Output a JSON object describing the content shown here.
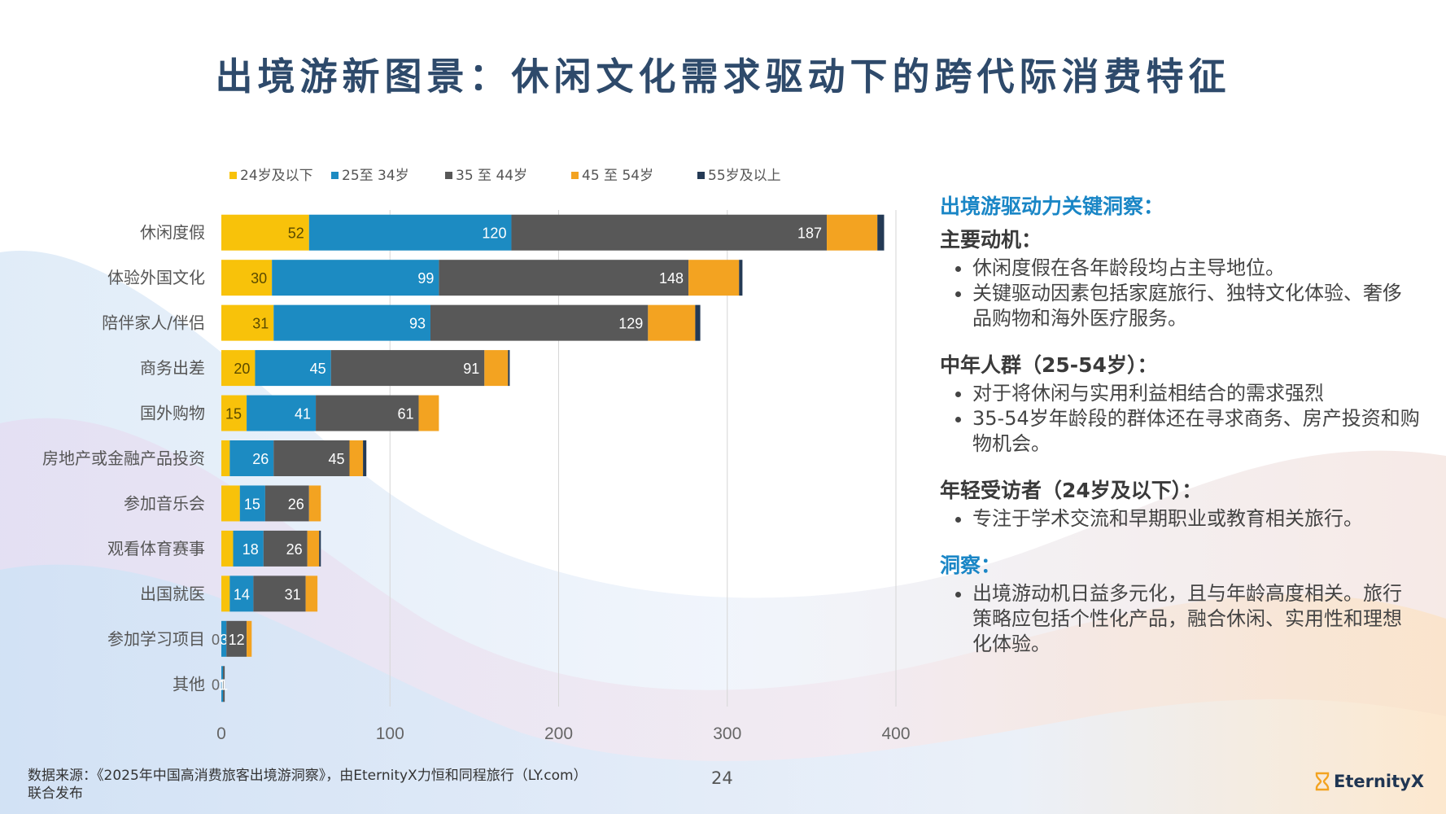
{
  "title": "出境游新图景：休闲文化需求驱动下的跨代际消费特征",
  "colors": {
    "series": [
      "#f8c20a",
      "#1c8bc2",
      "#585858",
      "#f3a321",
      "#243a55"
    ],
    "accent": "#1a86c6",
    "title": "#2e4a6b"
  },
  "chart_data": {
    "type": "bar",
    "orientation": "horizontal",
    "stacked": true,
    "categories": [
      "休闲度假",
      "体验外国文化",
      "陪伴家人/伴侣",
      "商务出差",
      "国外购物",
      "房地产或金融产品投资",
      "参加音乐会",
      "观看体育赛事",
      "出国就医",
      "参加学习项目",
      "其他"
    ],
    "series": [
      {
        "name": "24岁及以下",
        "values": [
          52,
          30,
          31,
          20,
          15,
          5,
          11,
          7,
          5,
          0,
          0
        ]
      },
      {
        "name": "25至 34岁",
        "values": [
          120,
          99,
          93,
          45,
          41,
          26,
          15,
          18,
          14,
          3,
          1
        ]
      },
      {
        "name": "35 至 44岁",
        "values": [
          187,
          148,
          129,
          91,
          61,
          45,
          26,
          26,
          31,
          12,
          1
        ]
      },
      {
        "name": "45 至 54岁",
        "values": [
          30,
          30,
          28,
          14,
          12,
          8,
          7,
          7,
          7,
          3,
          0
        ]
      },
      {
        "name": "55岁及以上",
        "values": [
          4,
          2,
          3,
          1,
          0,
          2,
          0,
          1,
          0,
          0,
          0
        ]
      }
    ],
    "data_labels": [
      [
        "52",
        "120",
        "187",
        null,
        null
      ],
      [
        "30",
        "99",
        "148",
        null,
        null
      ],
      [
        "31",
        "93",
        "129",
        null,
        null
      ],
      [
        "20",
        "45",
        "91",
        null,
        null
      ],
      [
        "15",
        "41",
        "61",
        null,
        null
      ],
      [
        null,
        "26",
        "45",
        null,
        null
      ],
      [
        null,
        "15",
        "26",
        null,
        null
      ],
      [
        null,
        "18",
        "26",
        null,
        null
      ],
      [
        null,
        "14",
        "31",
        null,
        null
      ],
      [
        "0",
        "3",
        "12",
        null,
        null
      ],
      [
        "0",
        "1",
        "1",
        null,
        null
      ]
    ],
    "xlim": [
      0,
      400
    ],
    "xticks": [
      "0",
      "100",
      "200",
      "300",
      "400"
    ],
    "grid": true,
    "legend_position": "top"
  },
  "insights": {
    "heading": "出境游驱动力关键洞察：",
    "sections": [
      {
        "title": "主要动机：",
        "bullets": [
          "休闲度假在各年龄段均占主导地位。",
          "关键驱动因素包括家庭旅行、独特文化体验、奢侈品购物和海外医疗服务。"
        ]
      },
      {
        "title": "中年人群（25-54岁）：",
        "bullets": [
          "对于将休闲与实用利益相结合的需求强烈",
          "35-54岁年龄段的群体还在寻求商务、房产投资和购物机会。"
        ]
      },
      {
        "title": "年轻受访者（24岁及以下）：",
        "bullets": [
          "专注于学术交流和早期职业或教育相关旅行。"
        ]
      },
      {
        "title": "洞察：",
        "bullets": [
          "出境游动机日益多元化，且与年龄高度相关。旅行策略应包括个性化产品，融合休闲、实用性和理想化体验。"
        ]
      }
    ]
  },
  "source": {
    "line1": "数据来源：《2025年中国高消费旅客出境游洞察》，由EternityX力恒和同程旅行（LY.com）",
    "line2": "联合发布"
  },
  "page_number": "24",
  "logo": {
    "text": "EternityX",
    "icon": "hourglass-icon"
  }
}
